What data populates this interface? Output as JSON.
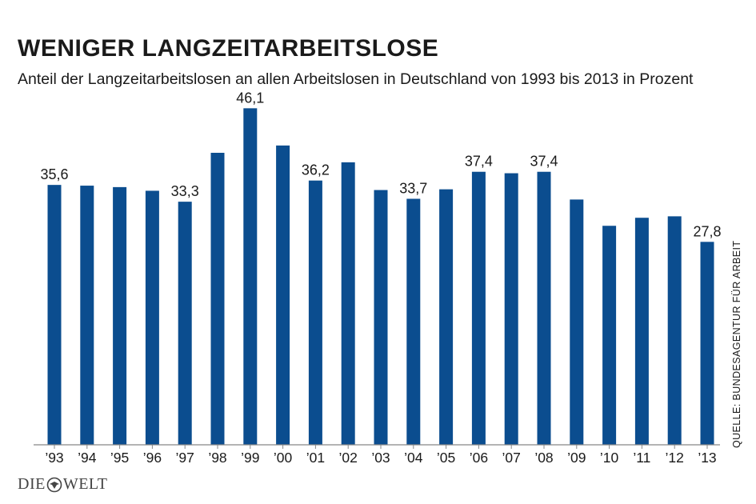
{
  "header": {
    "title": "WENIGER LANGZEITARBEITSLOSE",
    "subtitle": "Anteil der Langzeitarbeitslosen an allen Arbeitslosen in Deutschland von 1993 bis 2013 in Prozent"
  },
  "source": "QUELLE:  BUNDESAGENTUR FÜR ARBEIT",
  "logo": {
    "left": "DIE",
    "right": "WELT",
    "mark_icon": "eagle-icon"
  },
  "colors": {
    "bar": "#0b4d8f",
    "axis": "#888888",
    "text": "#1a1a1a"
  },
  "chart_data": {
    "type": "bar",
    "title": "WENIGER LANGZEITARBEITSLOSE",
    "subtitle": "Anteil der Langzeitarbeitslosen an allen Arbeitslosen in Deutschland von 1993 bis 2013 in Prozent",
    "categories": [
      "’93",
      "’94",
      "’95",
      "’96",
      "’97",
      "’98",
      "’99",
      "’00",
      "’01",
      "’02",
      "’03",
      "’04",
      "’05",
      "’06",
      "’07",
      "’08",
      "’09",
      "’10",
      "’11",
      "’12",
      "’13"
    ],
    "values": [
      35.6,
      35.5,
      35.3,
      34.8,
      33.3,
      40.0,
      46.1,
      41.0,
      36.2,
      38.7,
      34.9,
      33.7,
      35.0,
      37.4,
      37.2,
      37.4,
      33.6,
      30.0,
      31.1,
      31.3,
      27.8
    ],
    "data_labels": [
      {
        "index": 0,
        "text": "35,6"
      },
      {
        "index": 4,
        "text": "33,3"
      },
      {
        "index": 6,
        "text": "46,1"
      },
      {
        "index": 8,
        "text": "36,2"
      },
      {
        "index": 11,
        "text": "33,7"
      },
      {
        "index": 13,
        "text": "37,4"
      },
      {
        "index": 15,
        "text": "37,4"
      },
      {
        "index": 20,
        "text": "27,8"
      }
    ],
    "ylim": [
      0,
      50
    ],
    "grid": false,
    "legend": "none"
  }
}
